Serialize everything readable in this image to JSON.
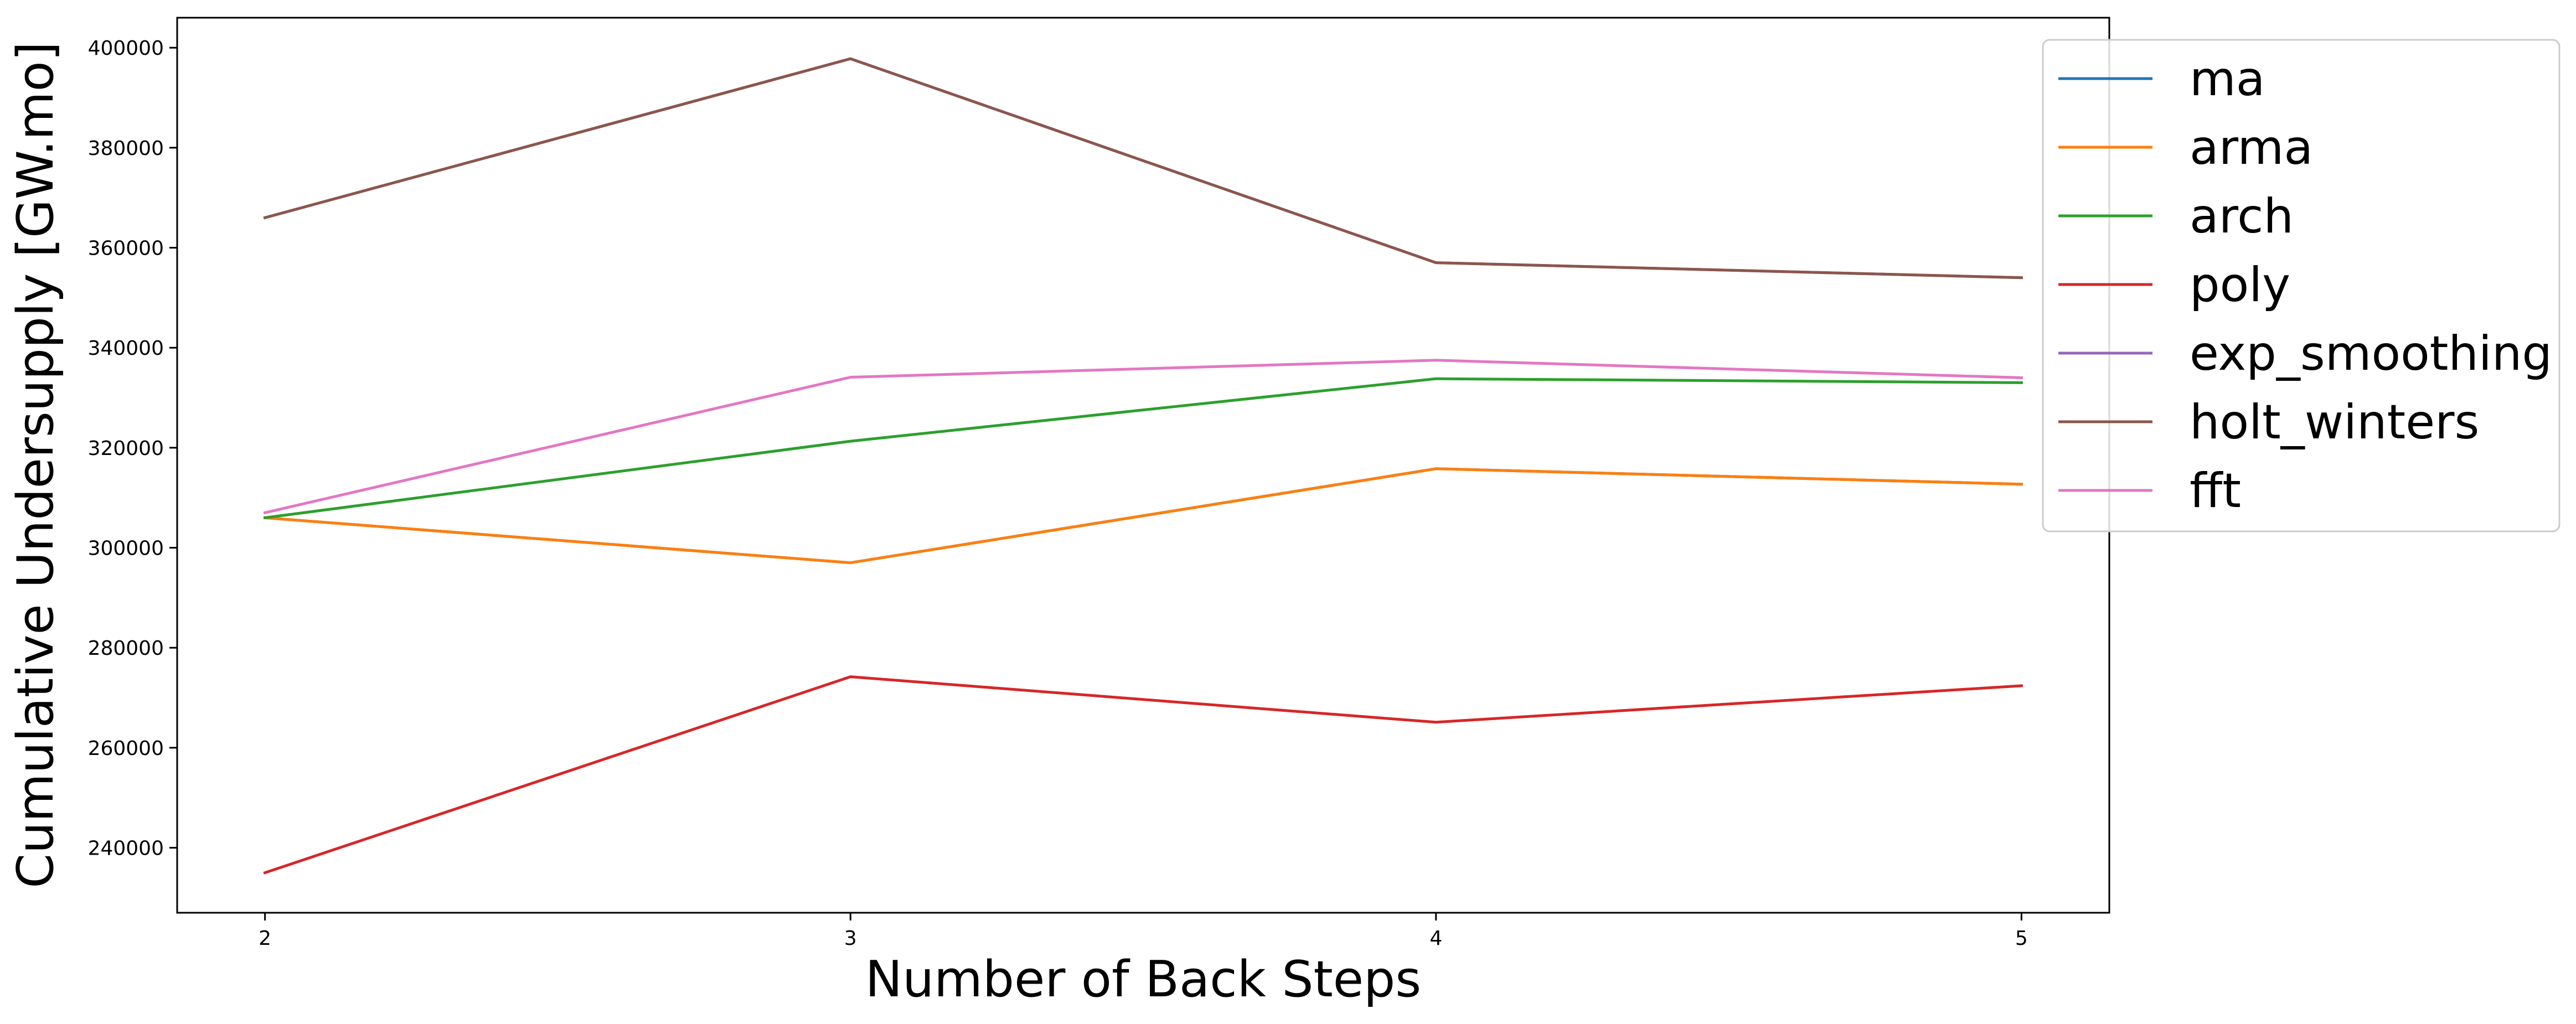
{
  "chart_data": {
    "type": "line",
    "xlabel": "Number of Back Steps",
    "ylabel": "Cumulative Undersupply [GW.mo]",
    "x": [
      2,
      3,
      4,
      5
    ],
    "xticks": [
      "2",
      "3",
      "4",
      "5"
    ],
    "xlim": [
      1.85,
      5.15
    ],
    "ylim": [
      227000,
      406000
    ],
    "yticks": [
      240000,
      260000,
      280000,
      300000,
      320000,
      340000,
      360000,
      380000,
      400000
    ],
    "ytick_labels": [
      "240000",
      "260000",
      "280000",
      "300000",
      "320000",
      "340000",
      "360000",
      "380000",
      "400000"
    ],
    "grid": false,
    "legend_position": "upper-right, partially outside the axes",
    "series": [
      {
        "name": "ma",
        "color": "#1f77b4",
        "values": [
          306000,
          297000,
          315800,
          312700
        ]
      },
      {
        "name": "arma",
        "color": "#ff7f0e",
        "values": [
          306000,
          297000,
          315800,
          312700
        ]
      },
      {
        "name": "arch",
        "color": "#2ca02c",
        "values": [
          306000,
          321300,
          333800,
          333000
        ]
      },
      {
        "name": "poly",
        "color": "#d62728",
        "values": [
          235000,
          274200,
          265100,
          272400
        ]
      },
      {
        "name": "exp_smoothing",
        "color": "#9467bd",
        "values": [
          366000,
          397800,
          357000,
          354000
        ]
      },
      {
        "name": "holt_winters",
        "color": "#8c564b",
        "values": [
          366000,
          397800,
          357000,
          354000
        ]
      },
      {
        "name": "fft",
        "color": "#e377c2",
        "values": [
          307000,
          334100,
          337500,
          334000
        ]
      }
    ]
  }
}
